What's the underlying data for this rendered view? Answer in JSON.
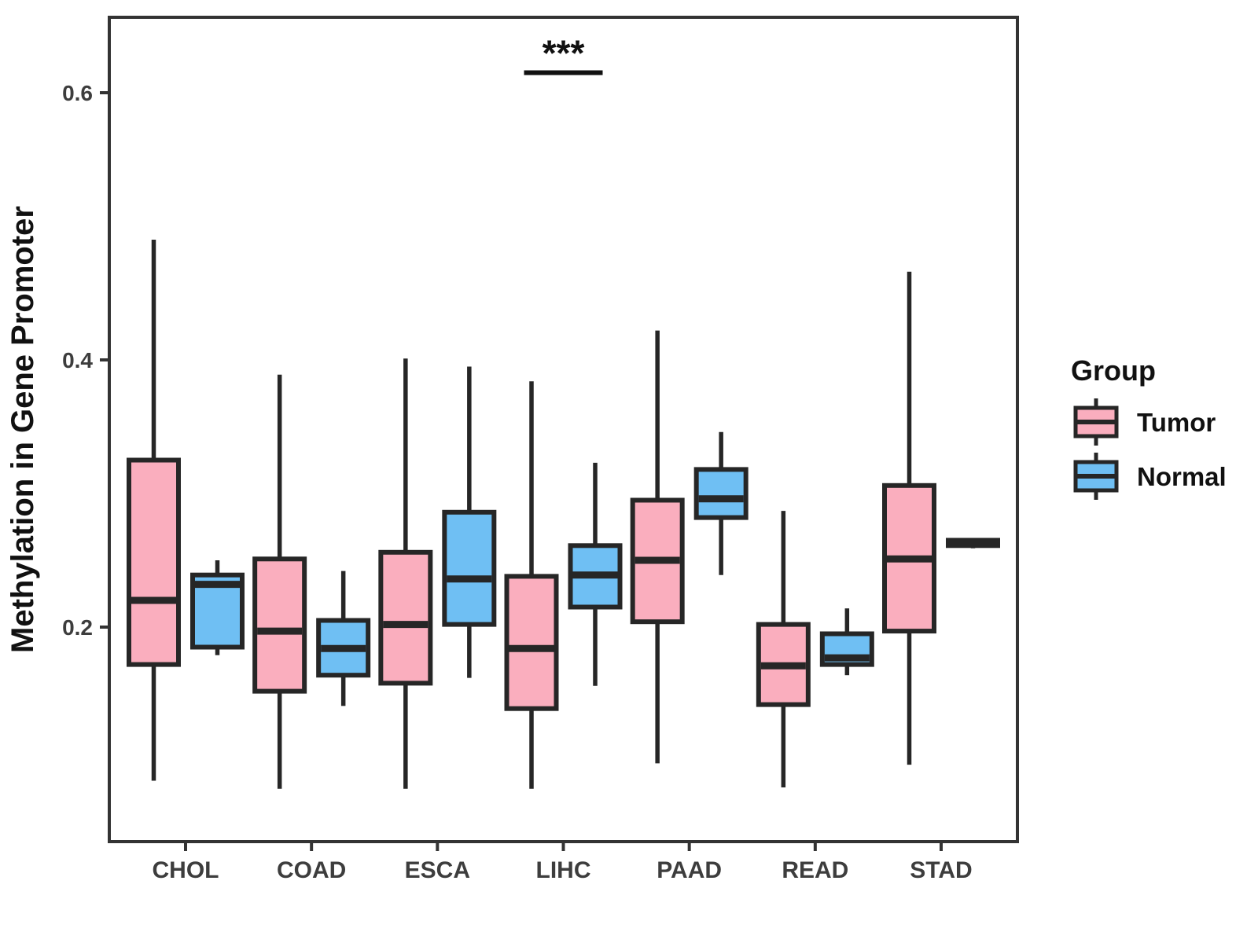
{
  "chart_data": {
    "type": "boxplot",
    "title": "",
    "xlabel": "",
    "ylabel": "Methylation in Gene Promoter",
    "ylim": [
      0.039,
      0.657
    ],
    "grid": false,
    "legend_position": "right",
    "categories": [
      "CHOL",
      "COAD",
      "ESCA",
      "LIHC",
      "PAAD",
      "READ",
      "STAD"
    ],
    "y_axis": {
      "ticks": [
        {
          "value": 0.2,
          "label": "0.2"
        },
        {
          "value": 0.4,
          "label": "0.4"
        },
        {
          "value": 0.6,
          "label": "0.6"
        }
      ]
    },
    "series": [
      {
        "name": "Tumor",
        "color": "#FAAEBE",
        "stats": [
          {
            "category": "CHOL",
            "low": 0.085,
            "q1": 0.172,
            "median": 0.22,
            "q3": 0.325,
            "high": 0.49
          },
          {
            "category": "COAD",
            "low": 0.079,
            "q1": 0.152,
            "median": 0.197,
            "q3": 0.251,
            "high": 0.389
          },
          {
            "category": "ESCA",
            "low": 0.079,
            "q1": 0.158,
            "median": 0.202,
            "q3": 0.256,
            "high": 0.401
          },
          {
            "category": "LIHC",
            "low": 0.079,
            "q1": 0.139,
            "median": 0.184,
            "q3": 0.238,
            "high": 0.384
          },
          {
            "category": "PAAD",
            "low": 0.098,
            "q1": 0.204,
            "median": 0.25,
            "q3": 0.295,
            "high": 0.422
          },
          {
            "category": "READ",
            "low": 0.08,
            "q1": 0.142,
            "median": 0.171,
            "q3": 0.202,
            "high": 0.287
          },
          {
            "category": "STAD",
            "low": 0.097,
            "q1": 0.197,
            "median": 0.251,
            "q3": 0.306,
            "high": 0.466
          }
        ]
      },
      {
        "name": "Normal",
        "color": "#6FBFF3",
        "stats": [
          {
            "category": "CHOL",
            "low": 0.179,
            "q1": 0.185,
            "median": 0.232,
            "q3": 0.239,
            "high": 0.25
          },
          {
            "category": "COAD",
            "low": 0.141,
            "q1": 0.164,
            "median": 0.184,
            "q3": 0.205,
            "high": 0.242
          },
          {
            "category": "ESCA",
            "low": 0.162,
            "q1": 0.202,
            "median": 0.236,
            "q3": 0.286,
            "high": 0.395
          },
          {
            "category": "LIHC",
            "low": 0.156,
            "q1": 0.215,
            "median": 0.239,
            "q3": 0.261,
            "high": 0.323
          },
          {
            "category": "PAAD",
            "low": 0.239,
            "q1": 0.282,
            "median": 0.296,
            "q3": 0.318,
            "high": 0.346
          },
          {
            "category": "READ",
            "low": 0.164,
            "q1": 0.172,
            "median": 0.177,
            "q3": 0.195,
            "high": 0.214
          },
          {
            "category": "STAD",
            "low": 0.259,
            "q1": 0.261,
            "median": 0.263,
            "q3": 0.265,
            "high": 0.266
          }
        ]
      }
    ],
    "legend": {
      "title": "Group",
      "entries": [
        {
          "label": "Tumor",
          "color": "#FAAEBE"
        },
        {
          "label": "Normal",
          "color": "#6FBFF3"
        }
      ]
    },
    "annotation": {
      "text": "***",
      "category": "LIHC",
      "bar_y_value": 0.615
    },
    "colors": {
      "box_border": "#262626",
      "panel_border": "#333333",
      "axis_tick_text": "#3D3D3D",
      "label_text": "#111111"
    }
  }
}
